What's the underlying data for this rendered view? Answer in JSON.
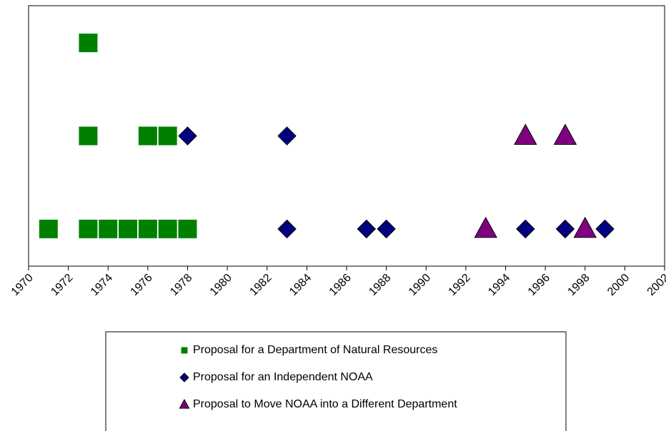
{
  "chart_data": {
    "type": "scatter",
    "xlim": [
      1970,
      2002
    ],
    "xticks": [
      1970,
      1972,
      1974,
      1976,
      1978,
      1980,
      1982,
      1984,
      1986,
      1988,
      1990,
      1992,
      1994,
      1996,
      1998,
      2000,
      2002
    ],
    "ylim": [
      0.6,
      3.4
    ],
    "series": [
      {
        "name": "Proposal for a Department of Natural Resources",
        "color": "#008000",
        "marker": "square",
        "x": [
          1973,
          1973,
          1976,
          1977,
          1971,
          1973,
          1974,
          1975,
          1976,
          1977,
          1978
        ],
        "values": [
          3,
          2,
          2,
          2,
          1,
          1,
          1,
          1,
          1,
          1,
          1
        ]
      },
      {
        "name": "Proposal for an Independent NOAA",
        "color": "#000080",
        "marker": "diamond",
        "x": [
          1978,
          1983,
          1983,
          1987,
          1988,
          1995,
          1997,
          1999
        ],
        "values": [
          2,
          2,
          1,
          1,
          1,
          1,
          1,
          1
        ]
      },
      {
        "name": "Proposal to Move NOAA into a Different Department",
        "color": "#800080",
        "marker": "triangle",
        "x": [
          1995,
          1997,
          1993,
          1998
        ],
        "values": [
          2,
          2,
          1,
          1
        ]
      }
    ]
  }
}
